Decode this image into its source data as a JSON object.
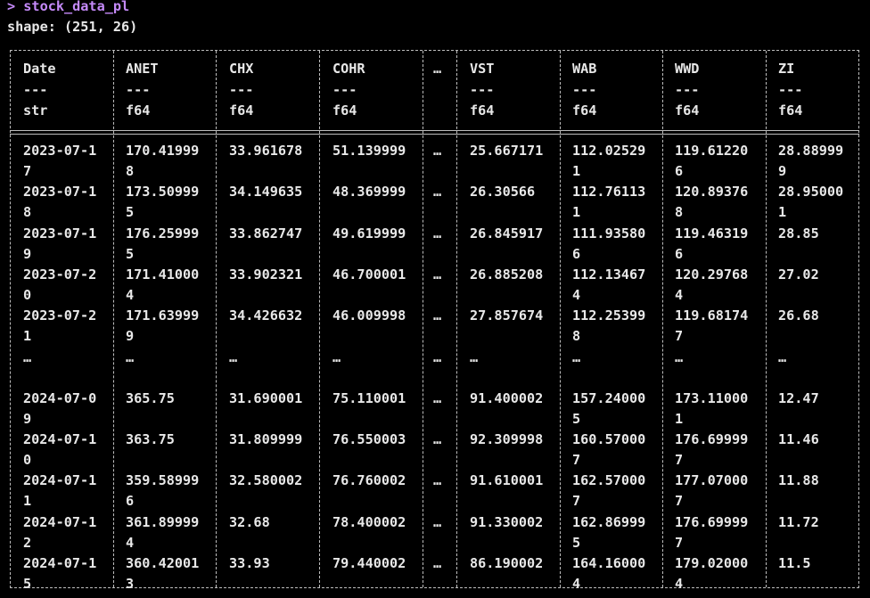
{
  "prompt": {
    "text": "> stock_data_pl"
  },
  "shape": {
    "text": "shape: (251, 26)"
  },
  "colors": {
    "prompt": "#c58af9",
    "text": "#e8e8e8",
    "border": "#bdbdbd",
    "background": "#000000"
  },
  "table": {
    "columns": [
      {
        "name": "Date",
        "dashes": "---",
        "dtype": "str"
      },
      {
        "name": "ANET",
        "dashes": "---",
        "dtype": "f64"
      },
      {
        "name": "CHX",
        "dashes": "---",
        "dtype": "f64"
      },
      {
        "name": "COHR",
        "dashes": "---",
        "dtype": "f64"
      },
      {
        "name": "…",
        "dashes": "",
        "dtype": ""
      },
      {
        "name": "VST",
        "dashes": "---",
        "dtype": "f64"
      },
      {
        "name": "WAB",
        "dashes": "---",
        "dtype": "f64"
      },
      {
        "name": "WWD",
        "dashes": "---",
        "dtype": "f64"
      },
      {
        "name": "ZI",
        "dashes": "---",
        "dtype": "f64"
      }
    ],
    "rows": [
      [
        [
          "2023-07-1",
          "7"
        ],
        [
          "170.41999",
          "8"
        ],
        [
          "33.961678",
          ""
        ],
        [
          "51.139999",
          ""
        ],
        [
          "…",
          ""
        ],
        [
          "25.667171",
          ""
        ],
        [
          "112.02529",
          "1"
        ],
        [
          "119.61220",
          "6"
        ],
        [
          "28.88999",
          "9"
        ]
      ],
      [
        [
          "2023-07-1",
          "8"
        ],
        [
          "173.50999",
          "5"
        ],
        [
          "34.149635",
          ""
        ],
        [
          "48.369999",
          ""
        ],
        [
          "…",
          ""
        ],
        [
          "26.30566",
          ""
        ],
        [
          "112.76113",
          "1"
        ],
        [
          "120.89376",
          "8"
        ],
        [
          "28.95000",
          "1"
        ]
      ],
      [
        [
          "2023-07-1",
          "9"
        ],
        [
          "176.25999",
          "5"
        ],
        [
          "33.862747",
          ""
        ],
        [
          "49.619999",
          ""
        ],
        [
          "…",
          ""
        ],
        [
          "26.845917",
          ""
        ],
        [
          "111.93580",
          "6"
        ],
        [
          "119.46319",
          "6"
        ],
        [
          "28.85",
          ""
        ]
      ],
      [
        [
          "2023-07-2",
          "0"
        ],
        [
          "171.41000",
          "4"
        ],
        [
          "33.902321",
          ""
        ],
        [
          "46.700001",
          ""
        ],
        [
          "…",
          ""
        ],
        [
          "26.885208",
          ""
        ],
        [
          "112.13467",
          "4"
        ],
        [
          "120.29768",
          "4"
        ],
        [
          "27.02",
          ""
        ]
      ],
      [
        [
          "2023-07-2",
          "1"
        ],
        [
          "171.63999",
          "9"
        ],
        [
          "34.426632",
          ""
        ],
        [
          "46.009998",
          ""
        ],
        [
          "…",
          ""
        ],
        [
          "27.857674",
          ""
        ],
        [
          "112.25399",
          "8"
        ],
        [
          "119.68174",
          "7"
        ],
        [
          "26.68",
          ""
        ]
      ],
      [
        [
          "…",
          ""
        ],
        [
          "…",
          ""
        ],
        [
          "…",
          ""
        ],
        [
          "…",
          ""
        ],
        [
          "…",
          ""
        ],
        [
          "…",
          ""
        ],
        [
          "…",
          ""
        ],
        [
          "…",
          ""
        ],
        [
          "…",
          ""
        ]
      ],
      [
        [
          "2024-07-0",
          "9"
        ],
        [
          "365.75",
          ""
        ],
        [
          "31.690001",
          ""
        ],
        [
          "75.110001",
          ""
        ],
        [
          "…",
          ""
        ],
        [
          "91.400002",
          ""
        ],
        [
          "157.24000",
          "5"
        ],
        [
          "173.11000",
          "1"
        ],
        [
          "12.47",
          ""
        ]
      ],
      [
        [
          "2024-07-1",
          "0"
        ],
        [
          "363.75",
          ""
        ],
        [
          "31.809999",
          ""
        ],
        [
          "76.550003",
          ""
        ],
        [
          "…",
          ""
        ],
        [
          "92.309998",
          ""
        ],
        [
          "160.57000",
          "7"
        ],
        [
          "176.69999",
          "7"
        ],
        [
          "11.46",
          ""
        ]
      ],
      [
        [
          "2024-07-1",
          "1"
        ],
        [
          "359.58999",
          "6"
        ],
        [
          "32.580002",
          ""
        ],
        [
          "76.760002",
          ""
        ],
        [
          "…",
          ""
        ],
        [
          "91.610001",
          ""
        ],
        [
          "162.57000",
          "7"
        ],
        [
          "177.07000",
          "7"
        ],
        [
          "11.88",
          ""
        ]
      ],
      [
        [
          "2024-07-1",
          "2"
        ],
        [
          "361.89999",
          "4"
        ],
        [
          "32.68",
          ""
        ],
        [
          "78.400002",
          ""
        ],
        [
          "…",
          ""
        ],
        [
          "91.330002",
          ""
        ],
        [
          "162.86999",
          "5"
        ],
        [
          "176.69999",
          "7"
        ],
        [
          "11.72",
          ""
        ]
      ],
      [
        [
          "2024-07-1",
          "5"
        ],
        [
          "360.42001",
          "3"
        ],
        [
          "33.93",
          ""
        ],
        [
          "79.440002",
          ""
        ],
        [
          "…",
          ""
        ],
        [
          "86.190002",
          ""
        ],
        [
          "164.16000",
          "4"
        ],
        [
          "179.02000",
          "4"
        ],
        [
          "11.5",
          ""
        ]
      ]
    ]
  }
}
